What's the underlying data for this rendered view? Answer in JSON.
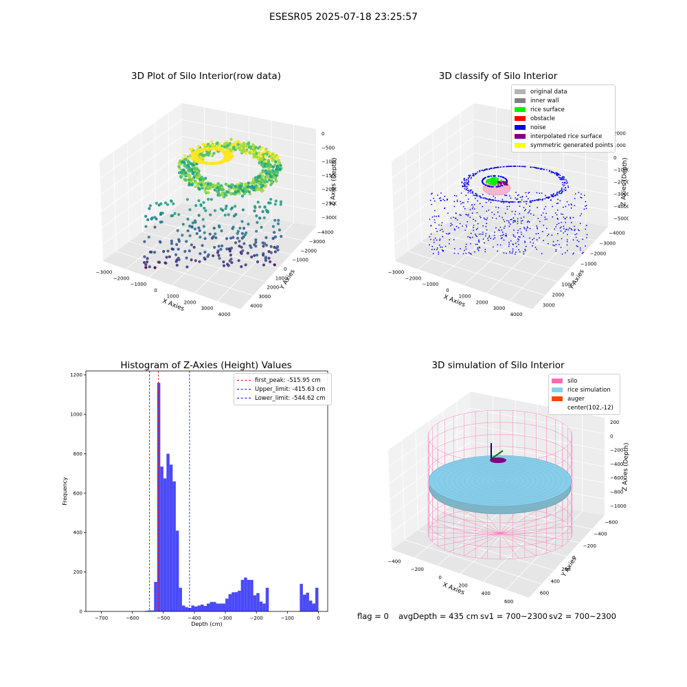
{
  "title": "ESESR05 2025-07-18 23:25:57",
  "footer": {
    "flag": "flag = 0",
    "avg_depth": "avgDepth = 435 cm",
    "sv1": "sv1 = 700~2300",
    "sv2": "sv2 = 700~2300"
  },
  "chart_data": [
    {
      "type": "scatter",
      "title": "3D Plot of Silo Interior(row data)",
      "xlabel": "X Axies",
      "ylabel": "Y Axies",
      "zlabel": "Z Axies (Depth)",
      "x_ticks": [
        "−3000",
        "−2000",
        "−1000",
        "0",
        "1000",
        "2000",
        "3000",
        "4000"
      ],
      "y_ticks": [
        "−4000",
        "−3000",
        "−2000",
        "−1000",
        "0",
        "1000",
        "2000",
        "3000",
        "4000"
      ],
      "z_ticks": [
        "0",
        "−500",
        "−1000",
        "−1500",
        "−2000",
        "−2500",
        "−3000"
      ],
      "colormap": "viridis"
    },
    {
      "type": "scatter",
      "title": "3D classify of Silo Interior",
      "xlabel": "X Axies",
      "ylabel": "Y Axies",
      "zlabel": "Z Axies (Depth)",
      "x_ticks": [
        "−3000",
        "−2000",
        "−1000",
        "0",
        "1000",
        "2000",
        "3000",
        "4000"
      ],
      "y_ticks": [
        "−4000",
        "−3000",
        "−2000",
        "−1000",
        "0",
        "1000",
        "2000",
        "3000"
      ],
      "z_ticks": [
        "2000",
        "1000",
        "0",
        "−1000",
        "−2000",
        "−3000",
        "−4000",
        "−5000"
      ],
      "legend": [
        {
          "label": "original data",
          "color": "#b3b3b3"
        },
        {
          "label": "inner wall",
          "color": "#808080"
        },
        {
          "label": "rice surface",
          "color": "#00ee00"
        },
        {
          "label": "obstacle",
          "color": "#ff0000"
        },
        {
          "label": "noise",
          "color": "#0000ee"
        },
        {
          "label": "interpolated rice surface",
          "color": "#800080"
        },
        {
          "label": "symmetric generated points",
          "color": "#ffff00"
        }
      ],
      "legend_position": "upper right"
    },
    {
      "type": "bar",
      "title": "Histogram of Z-Axies (Height) Values",
      "xlabel": "Depth (cm)",
      "ylabel": "Frequency",
      "xlim": [
        -750,
        30
      ],
      "ylim": [
        0,
        1220
      ],
      "x_ticks": [
        "−700",
        "−600",
        "−500",
        "−400",
        "−300",
        "−200",
        "−100",
        "0"
      ],
      "y_ticks": [
        "0",
        "200",
        "400",
        "600",
        "800",
        "1000",
        "1200"
      ],
      "bin_width": 10,
      "bins": [
        {
          "x": -560,
          "y": 3
        },
        {
          "x": -550,
          "y": 5
        },
        {
          "x": -540,
          "y": 5
        },
        {
          "x": -530,
          "y": 150
        },
        {
          "x": -520,
          "y": 1160
        },
        {
          "x": -510,
          "y": 735
        },
        {
          "x": -500,
          "y": 675
        },
        {
          "x": -490,
          "y": 800
        },
        {
          "x": -480,
          "y": 745
        },
        {
          "x": -470,
          "y": 660
        },
        {
          "x": -460,
          "y": 410
        },
        {
          "x": -450,
          "y": 120
        },
        {
          "x": -440,
          "y": 30
        },
        {
          "x": -430,
          "y": 22
        },
        {
          "x": -420,
          "y": 18
        },
        {
          "x": -410,
          "y": 30
        },
        {
          "x": -400,
          "y": 25
        },
        {
          "x": -390,
          "y": 30
        },
        {
          "x": -380,
          "y": 35
        },
        {
          "x": -370,
          "y": 28
        },
        {
          "x": -360,
          "y": 40
        },
        {
          "x": -350,
          "y": 48
        },
        {
          "x": -340,
          "y": 48
        },
        {
          "x": -330,
          "y": 40
        },
        {
          "x": -320,
          "y": 40
        },
        {
          "x": -310,
          "y": 40
        },
        {
          "x": -300,
          "y": 65
        },
        {
          "x": -290,
          "y": 88
        },
        {
          "x": -280,
          "y": 97
        },
        {
          "x": -270,
          "y": 98
        },
        {
          "x": -260,
          "y": 105
        },
        {
          "x": -250,
          "y": 160
        },
        {
          "x": -240,
          "y": 172
        },
        {
          "x": -230,
          "y": 160
        },
        {
          "x": -220,
          "y": 160
        },
        {
          "x": -210,
          "y": 82
        },
        {
          "x": -200,
          "y": 93
        },
        {
          "x": -190,
          "y": 50
        },
        {
          "x": -180,
          "y": 40
        },
        {
          "x": -170,
          "y": 120
        }
      ],
      "bar_color": "#4a4af8",
      "bin_offset_note": "",
      "reference_lines": [
        {
          "label": "first_peak: -515.95 cm",
          "x": -515.95,
          "color": "#ff0000"
        },
        {
          "label": "Upper_limit: -415.63 cm",
          "x": -415.63,
          "color": "#0000ff"
        },
        {
          "label": "Lower_limit: -544.62 cm",
          "x": -544.62,
          "color": "#0000ff"
        }
      ],
      "legend_position": "upper right"
    },
    {
      "type": "scatter",
      "title": "3D simulation of Silo Interior",
      "xlabel": "X Axies",
      "ylabel": "Y Axies",
      "zlabel": "Z Axies (Depth)",
      "x_ticks": [
        "−400",
        "−200",
        "0",
        "200",
        "400",
        "600"
      ],
      "y_ticks": [
        "−600",
        "−400",
        "−200",
        "0",
        "200",
        "400",
        "600"
      ],
      "z_ticks": [
        "200",
        "0",
        "−200",
        "−400",
        "−600",
        "−800",
        "−1000"
      ],
      "legend": [
        {
          "label": "silo",
          "color": "#ff69b4"
        },
        {
          "label": "rice simulation",
          "color": "#87ceeb"
        },
        {
          "label": "auger",
          "color": "#ff4500"
        },
        {
          "label": "center(102,-12)",
          "color": ""
        }
      ],
      "legend_position": "upper right"
    }
  ]
}
